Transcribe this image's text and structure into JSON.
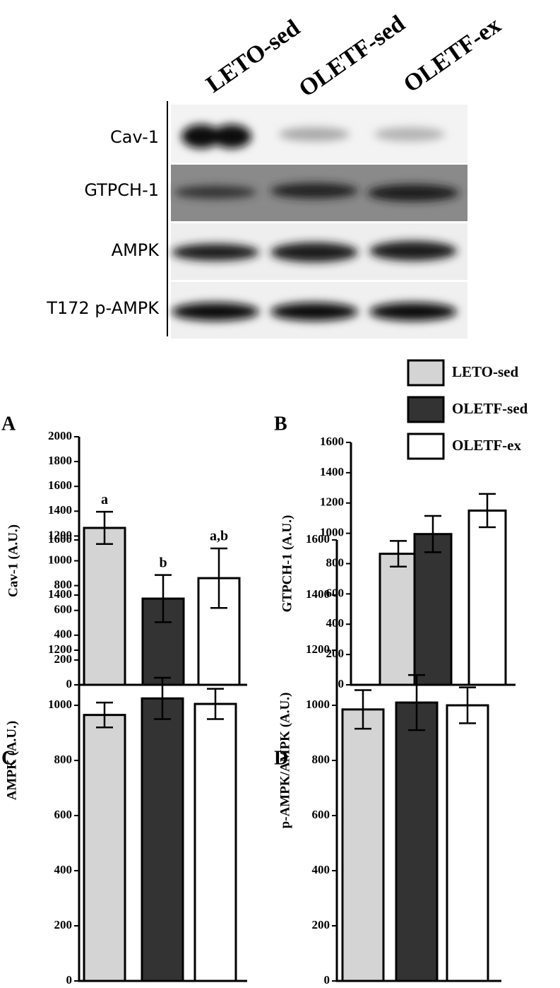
{
  "blot": {
    "lanes": [
      "LETO-sed",
      "OLETF-sed",
      "OLETF-ex"
    ],
    "rows": [
      "Cav-1",
      "GTPCH-1",
      "AMPK",
      "T172 p-AMPK"
    ]
  },
  "legend": {
    "entries": [
      {
        "name": "LETO-sed",
        "color": "#d4d4d4"
      },
      {
        "name": "OLETF-sed",
        "color": "#333333"
      },
      {
        "name": "OLETF-ex",
        "color": "#ffffff"
      }
    ]
  },
  "chart_data": [
    {
      "type": "bar",
      "panel": "A",
      "ylabel": "Cav-1 (A.U.)",
      "values": [
        1265,
        695,
        860
      ],
      "errors": [
        130,
        190,
        240
      ],
      "annotations": [
        "a",
        "b",
        "a,b"
      ],
      "ylim": [
        0,
        2000
      ],
      "yticks": [
        0,
        200,
        400,
        600,
        800,
        1000,
        1200,
        1400,
        1600,
        1800,
        2000
      ]
    },
    {
      "type": "bar",
      "panel": "B",
      "ylabel": "GTPCH-1 (A.U.)",
      "values": [
        865,
        995,
        1150
      ],
      "errors": [
        85,
        120,
        110
      ],
      "ylim": [
        0,
        1600
      ],
      "yticks": [
        0,
        200,
        400,
        600,
        800,
        1000,
        1200,
        1400,
        1600
      ]
    },
    {
      "type": "bar",
      "panel": "C",
      "ylabel": "AMPK (A.U.)",
      "values": [
        965,
        1025,
        1005
      ],
      "errors": [
        45,
        75,
        55
      ],
      "ylim": [
        0,
        1600
      ],
      "yticks": [
        0,
        200,
        400,
        600,
        800,
        1000,
        1200,
        1400,
        1600
      ]
    },
    {
      "type": "bar",
      "panel": "D",
      "ylabel": "p-AMPK/AMPK (A.U.)",
      "values": [
        985,
        1010,
        1000
      ],
      "errors": [
        70,
        100,
        65
      ],
      "ylim": [
        0,
        1600
      ],
      "yticks": [
        0,
        200,
        400,
        600,
        800,
        1000,
        1200,
        1400,
        1600
      ]
    }
  ]
}
